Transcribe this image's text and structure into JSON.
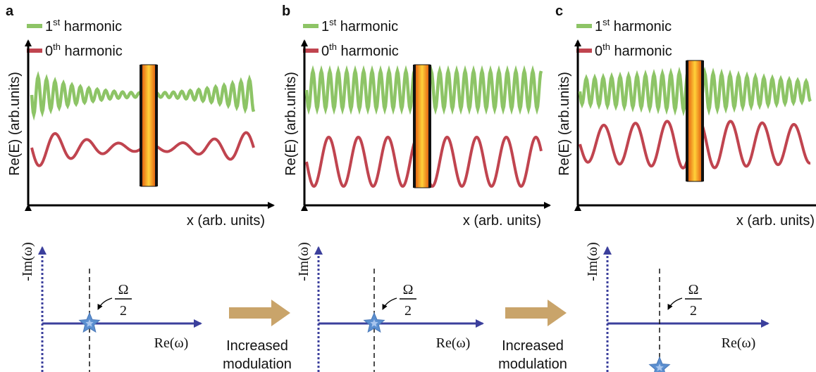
{
  "panels": [
    {
      "label": "a",
      "legend": [
        {
          "num": "1",
          "sup": "st",
          "text": " harmonic"
        },
        {
          "num": "0",
          "sup": "th",
          "text": " harmonic"
        }
      ],
      "y_axis_label": "Re(E) (arb.units)",
      "x_axis_label": "x (arb. units)",
      "im_label": "-Im(ω)",
      "re_label": "Re(ω)",
      "fraction": {
        "numerator": "Ω",
        "denominator": "2"
      }
    },
    {
      "label": "b",
      "legend": [
        {
          "num": "1",
          "sup": "st",
          "text": " harmonic"
        },
        {
          "num": "0",
          "sup": "th",
          "text": " harmonic"
        }
      ],
      "y_axis_label": "Re(E) (arb.units)",
      "x_axis_label": "x (arb. units)",
      "im_label": "-Im(ω)",
      "re_label": "Re(ω)",
      "fraction": {
        "numerator": "Ω",
        "denominator": "2"
      }
    },
    {
      "label": "c",
      "legend": [
        {
          "num": "1",
          "sup": "st",
          "text": " harmonic"
        },
        {
          "num": "0",
          "sup": "th",
          "text": " harmonic"
        }
      ],
      "y_axis_label": "Re(E) (arb.units)",
      "x_axis_label": "x (arb. units)",
      "im_label": "-Im(ω)",
      "re_label": "Re(ω)",
      "fraction": {
        "numerator": "Ω",
        "denominator": "2"
      }
    }
  ],
  "transitions": [
    {
      "line1": "Increased",
      "line2": "modulation"
    },
    {
      "line1": "Increased",
      "line2": "modulation"
    }
  ]
}
